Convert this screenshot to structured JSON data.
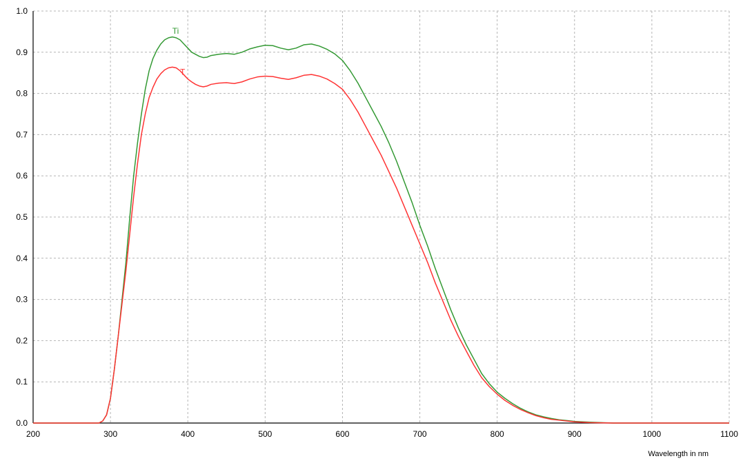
{
  "chart_data": {
    "type": "line",
    "title": "",
    "xlabel": "Wavelength in nm",
    "ylabel": "",
    "xlim": [
      200,
      1100
    ],
    "ylim": [
      0.0,
      1.0
    ],
    "grid": true,
    "x_ticks": [
      200,
      300,
      400,
      500,
      600,
      700,
      800,
      900,
      1000,
      1100
    ],
    "x_tick_labels": [
      "200",
      "300",
      "400",
      "500",
      "600",
      "700",
      "800",
      "900",
      "1000",
      "1100"
    ],
    "y_ticks": [
      0.0,
      0.1,
      0.2,
      0.3,
      0.4,
      0.5,
      0.6,
      0.7,
      0.8,
      0.9,
      1.0
    ],
    "y_tick_labels": [
      "0.0",
      "0.1",
      "0.2",
      "0.3",
      "0.4",
      "0.5",
      "0.6",
      "0.7",
      "0.8",
      "0.9",
      "1.0"
    ],
    "series": [
      {
        "name": "Ti",
        "color": "#339933",
        "label_at": [
          380,
          0.945
        ],
        "points": [
          [
            200,
            0.0
          ],
          [
            285,
            0.0
          ],
          [
            290,
            0.005
          ],
          [
            295,
            0.02
          ],
          [
            300,
            0.06
          ],
          [
            305,
            0.13
          ],
          [
            310,
            0.21
          ],
          [
            315,
            0.3
          ],
          [
            320,
            0.39
          ],
          [
            325,
            0.5
          ],
          [
            330,
            0.6
          ],
          [
            335,
            0.68
          ],
          [
            340,
            0.75
          ],
          [
            345,
            0.81
          ],
          [
            350,
            0.855
          ],
          [
            355,
            0.885
          ],
          [
            360,
            0.905
          ],
          [
            365,
            0.92
          ],
          [
            370,
            0.93
          ],
          [
            375,
            0.935
          ],
          [
            380,
            0.937
          ],
          [
            385,
            0.935
          ],
          [
            390,
            0.93
          ],
          [
            395,
            0.92
          ],
          [
            400,
            0.91
          ],
          [
            405,
            0.9
          ],
          [
            410,
            0.895
          ],
          [
            415,
            0.89
          ],
          [
            420,
            0.887
          ],
          [
            425,
            0.888
          ],
          [
            430,
            0.892
          ],
          [
            440,
            0.895
          ],
          [
            450,
            0.897
          ],
          [
            460,
            0.895
          ],
          [
            470,
            0.9
          ],
          [
            480,
            0.908
          ],
          [
            490,
            0.913
          ],
          [
            500,
            0.917
          ],
          [
            510,
            0.916
          ],
          [
            520,
            0.91
          ],
          [
            530,
            0.906
          ],
          [
            540,
            0.91
          ],
          [
            550,
            0.918
          ],
          [
            560,
            0.92
          ],
          [
            570,
            0.915
          ],
          [
            580,
            0.907
          ],
          [
            590,
            0.896
          ],
          [
            600,
            0.88
          ],
          [
            610,
            0.855
          ],
          [
            620,
            0.825
          ],
          [
            630,
            0.79
          ],
          [
            640,
            0.755
          ],
          [
            650,
            0.72
          ],
          [
            660,
            0.68
          ],
          [
            670,
            0.635
          ],
          [
            680,
            0.585
          ],
          [
            690,
            0.535
          ],
          [
            700,
            0.48
          ],
          [
            710,
            0.43
          ],
          [
            720,
            0.375
          ],
          [
            730,
            0.325
          ],
          [
            740,
            0.275
          ],
          [
            750,
            0.23
          ],
          [
            760,
            0.19
          ],
          [
            770,
            0.155
          ],
          [
            780,
            0.12
          ],
          [
            790,
            0.095
          ],
          [
            800,
            0.075
          ],
          [
            810,
            0.06
          ],
          [
            820,
            0.047
          ],
          [
            830,
            0.036
          ],
          [
            840,
            0.027
          ],
          [
            850,
            0.02
          ],
          [
            860,
            0.015
          ],
          [
            870,
            0.011
          ],
          [
            880,
            0.008
          ],
          [
            890,
            0.006
          ],
          [
            900,
            0.004
          ],
          [
            920,
            0.002
          ],
          [
            950,
            0.0
          ],
          [
            1100,
            0.0
          ]
        ]
      },
      {
        "name": "T",
        "color": "#ff3333",
        "label_at": [
          390,
          0.845
        ],
        "points": [
          [
            200,
            0.0
          ],
          [
            285,
            0.0
          ],
          [
            290,
            0.005
          ],
          [
            295,
            0.02
          ],
          [
            300,
            0.06
          ],
          [
            305,
            0.13
          ],
          [
            310,
            0.21
          ],
          [
            315,
            0.29
          ],
          [
            320,
            0.37
          ],
          [
            325,
            0.46
          ],
          [
            330,
            0.55
          ],
          [
            335,
            0.63
          ],
          [
            340,
            0.7
          ],
          [
            345,
            0.75
          ],
          [
            350,
            0.79
          ],
          [
            355,
            0.815
          ],
          [
            360,
            0.835
          ],
          [
            365,
            0.848
          ],
          [
            370,
            0.857
          ],
          [
            375,
            0.862
          ],
          [
            380,
            0.864
          ],
          [
            385,
            0.862
          ],
          [
            390,
            0.855
          ],
          [
            395,
            0.845
          ],
          [
            400,
            0.835
          ],
          [
            405,
            0.828
          ],
          [
            410,
            0.822
          ],
          [
            415,
            0.818
          ],
          [
            420,
            0.816
          ],
          [
            425,
            0.818
          ],
          [
            430,
            0.822
          ],
          [
            440,
            0.825
          ],
          [
            450,
            0.826
          ],
          [
            460,
            0.824
          ],
          [
            470,
            0.828
          ],
          [
            480,
            0.835
          ],
          [
            490,
            0.84
          ],
          [
            500,
            0.842
          ],
          [
            510,
            0.841
          ],
          [
            520,
            0.837
          ],
          [
            530,
            0.834
          ],
          [
            540,
            0.838
          ],
          [
            550,
            0.844
          ],
          [
            560,
            0.846
          ],
          [
            570,
            0.842
          ],
          [
            580,
            0.835
          ],
          [
            590,
            0.824
          ],
          [
            600,
            0.81
          ],
          [
            610,
            0.785
          ],
          [
            620,
            0.755
          ],
          [
            630,
            0.72
          ],
          [
            640,
            0.685
          ],
          [
            650,
            0.65
          ],
          [
            660,
            0.61
          ],
          [
            670,
            0.57
          ],
          [
            680,
            0.525
          ],
          [
            690,
            0.48
          ],
          [
            700,
            0.435
          ],
          [
            710,
            0.39
          ],
          [
            720,
            0.34
          ],
          [
            730,
            0.295
          ],
          [
            740,
            0.25
          ],
          [
            750,
            0.21
          ],
          [
            760,
            0.175
          ],
          [
            770,
            0.14
          ],
          [
            780,
            0.11
          ],
          [
            790,
            0.088
          ],
          [
            800,
            0.07
          ],
          [
            810,
            0.055
          ],
          [
            820,
            0.043
          ],
          [
            830,
            0.033
          ],
          [
            840,
            0.025
          ],
          [
            850,
            0.018
          ],
          [
            860,
            0.013
          ],
          [
            870,
            0.009
          ],
          [
            880,
            0.007
          ],
          [
            890,
            0.005
          ],
          [
            900,
            0.003
          ],
          [
            920,
            0.001
          ],
          [
            950,
            0.0
          ],
          [
            1100,
            0.0
          ]
        ]
      }
    ]
  }
}
